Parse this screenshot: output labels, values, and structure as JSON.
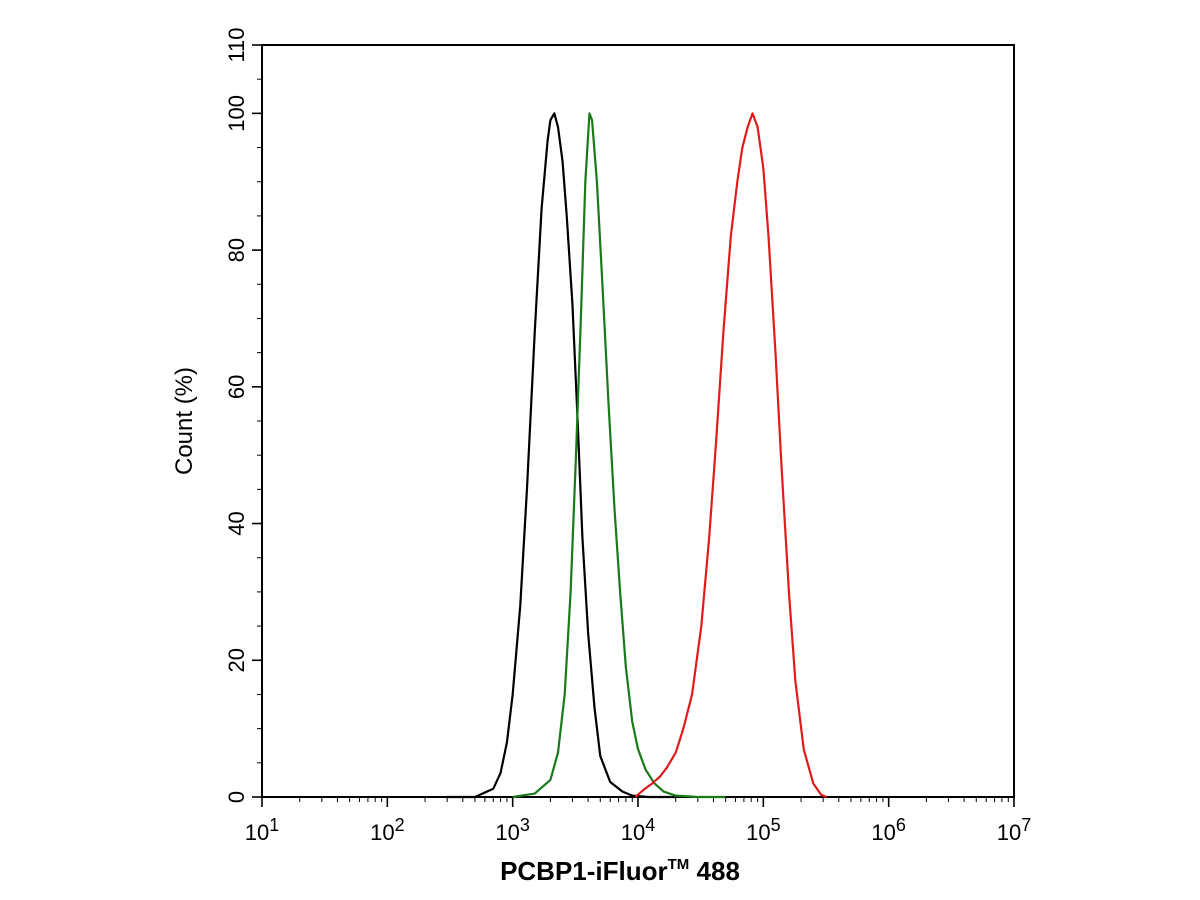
{
  "chart_data": {
    "type": "line",
    "title": "",
    "xlabel": "PCBP1-iFluor™ 488",
    "xlabel_main": "PCBP1-iFluor",
    "xlabel_sup": "TM",
    "xlabel_tail": " 488",
    "ylabel": "Count  (%)",
    "x_scale": "log",
    "xlim": [
      10,
      10000000
    ],
    "ylim": [
      0,
      110
    ],
    "x_ticks": [
      {
        "base": "10",
        "exp": "1",
        "value": 10
      },
      {
        "base": "10",
        "exp": "2",
        "value": 100
      },
      {
        "base": "10",
        "exp": "3",
        "value": 1000
      },
      {
        "base": "10",
        "exp": "4",
        "value": 10000
      },
      {
        "base": "10",
        "exp": "5",
        "value": 100000
      },
      {
        "base": "10",
        "exp": "6",
        "value": 1000000
      },
      {
        "base": "10",
        "exp": "7",
        "value": 10000000
      }
    ],
    "y_ticks": [
      "0",
      "20",
      "40",
      "60",
      "80",
      "100",
      "110"
    ],
    "y_tick_values": [
      0,
      20,
      40,
      60,
      80,
      100,
      110
    ],
    "grid": false,
    "legend": "none",
    "series": [
      {
        "color": "#000000",
        "points": [
          [
            300,
            0
          ],
          [
            500,
            0
          ],
          [
            700,
            1.2
          ],
          [
            800,
            3.5
          ],
          [
            900,
            8
          ],
          [
            1000,
            15
          ],
          [
            1150,
            28
          ],
          [
            1300,
            45
          ],
          [
            1500,
            68
          ],
          [
            1700,
            86
          ],
          [
            1900,
            96
          ],
          [
            2000,
            99
          ],
          [
            2150,
            100
          ],
          [
            2300,
            98
          ],
          [
            2500,
            93
          ],
          [
            2700,
            85
          ],
          [
            3000,
            72
          ],
          [
            3300,
            55
          ],
          [
            3600,
            38
          ],
          [
            4000,
            24
          ],
          [
            4500,
            13
          ],
          [
            5000,
            6
          ],
          [
            6000,
            2.2
          ],
          [
            7500,
            0.8
          ],
          [
            9000,
            0.2
          ],
          [
            12000,
            0
          ],
          [
            20000,
            0
          ]
        ]
      },
      {
        "color": "#1a7a1a",
        "points": [
          [
            1000,
            0
          ],
          [
            1500,
            0.5
          ],
          [
            2000,
            2.5
          ],
          [
            2300,
            6.5
          ],
          [
            2600,
            15
          ],
          [
            2900,
            30
          ],
          [
            3200,
            50
          ],
          [
            3500,
            70
          ],
          [
            3800,
            90
          ],
          [
            4100,
            100
          ],
          [
            4300,
            99
          ],
          [
            4700,
            90
          ],
          [
            5200,
            75
          ],
          [
            5800,
            58
          ],
          [
            6500,
            42
          ],
          [
            7200,
            30
          ],
          [
            8000,
            19
          ],
          [
            9000,
            11
          ],
          [
            10000,
            7
          ],
          [
            11500,
            4
          ],
          [
            13500,
            2
          ],
          [
            16000,
            0.8
          ],
          [
            20000,
            0.2
          ],
          [
            30000,
            0
          ],
          [
            50000,
            0
          ]
        ]
      },
      {
        "color": "#e01b1b",
        "points": [
          [
            9500,
            0
          ],
          [
            11000,
            1
          ],
          [
            13000,
            2
          ],
          [
            15000,
            3
          ],
          [
            17000,
            4.3
          ],
          [
            20000,
            6.5
          ],
          [
            23000,
            10
          ],
          [
            27000,
            15
          ],
          [
            32000,
            25
          ],
          [
            37000,
            38
          ],
          [
            42000,
            52
          ],
          [
            48000,
            68
          ],
          [
            55000,
            82
          ],
          [
            62000,
            90
          ],
          [
            68000,
            95
          ],
          [
            75000,
            98
          ],
          [
            82000,
            100
          ],
          [
            90000,
            98
          ],
          [
            100000,
            92
          ],
          [
            110000,
            82
          ],
          [
            125000,
            65
          ],
          [
            140000,
            48
          ],
          [
            160000,
            30
          ],
          [
            180000,
            17
          ],
          [
            210000,
            7
          ],
          [
            250000,
            2
          ],
          [
            290000,
            0.3
          ],
          [
            320000,
            0
          ]
        ]
      }
    ]
  }
}
